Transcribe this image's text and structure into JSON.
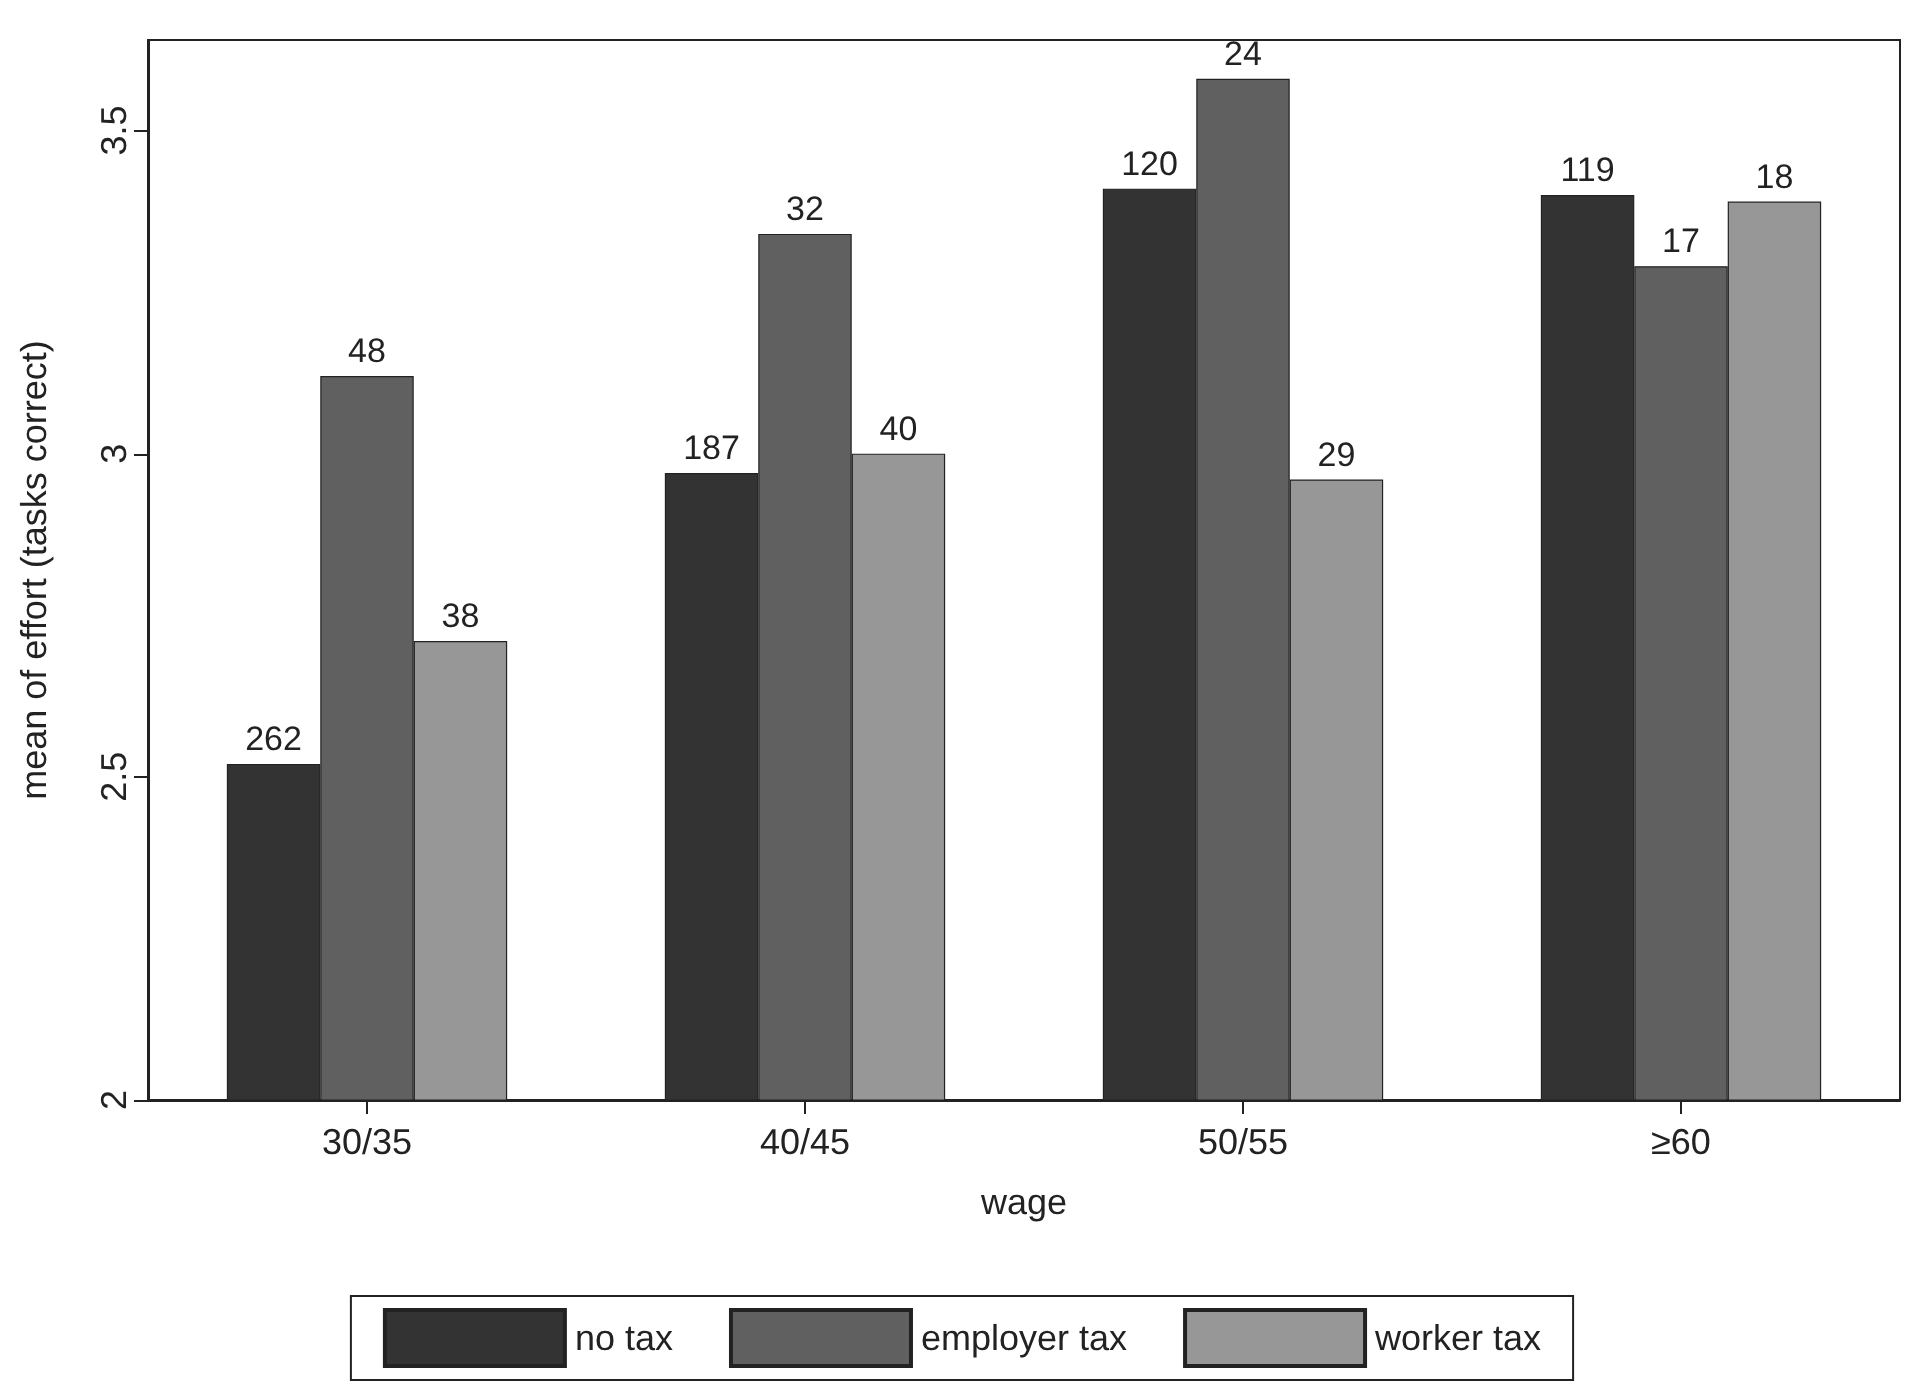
{
  "chart_data": {
    "type": "bar",
    "xlabel": "wage",
    "ylabel": "mean of effort (tasks correct)",
    "categories": [
      "30/35",
      "40/45",
      "50/55",
      "≥60"
    ],
    "series": [
      {
        "name": "no tax",
        "color": "#333333",
        "values": [
          2.52,
          2.97,
          3.41,
          3.4
        ]
      },
      {
        "name": "employer tax",
        "color": "#606060",
        "values": [
          3.12,
          3.34,
          3.58,
          3.29
        ]
      },
      {
        "name": "worker tax",
        "color": "#979797",
        "values": [
          2.71,
          3.0,
          2.96,
          3.39
        ]
      }
    ],
    "annotations": [
      "262",
      "48",
      "38",
      "187",
      "32",
      "40",
      "120",
      "24",
      "29",
      "119",
      "17",
      "18"
    ],
    "ylim": [
      2,
      3.64
    ],
    "yticks": [
      2,
      2.5,
      3,
      3.5
    ],
    "grid": false,
    "legend": "bottom"
  }
}
